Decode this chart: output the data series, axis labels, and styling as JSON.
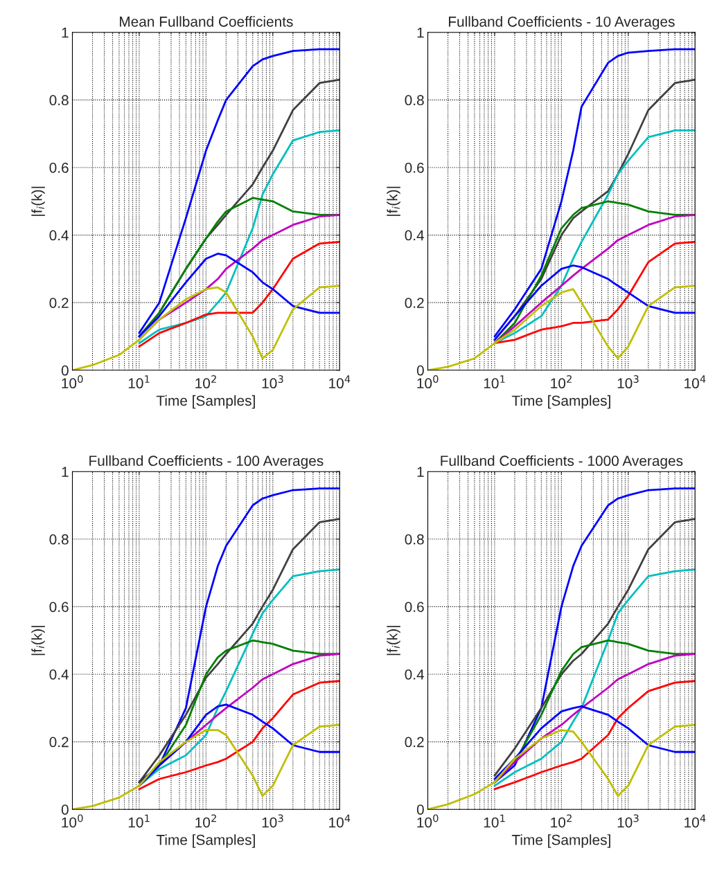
{
  "chart_data": [
    {
      "type": "line",
      "title": "Mean Fullband Coefficients",
      "xlabel": "Time [Samples]",
      "ylabel": "|f$_{i}$(k)|",
      "log": "x",
      "grid": true,
      "xlim": [
        1,
        10000
      ],
      "xticks": [
        {
          "value": 1,
          "label": "10$^{0}$"
        },
        {
          "value": 10,
          "label": "10$^{1}$"
        },
        {
          "value": 100,
          "label": "10$^{2}$"
        },
        {
          "value": 1000,
          "label": "10$^{3}$"
        },
        {
          "value": 10000,
          "label": "10$^{4}$"
        }
      ],
      "ylim": [
        0,
        1
      ],
      "yticks": [
        0,
        0.2,
        0.4,
        0.6,
        0.8,
        1
      ],
      "x": [
        1,
        2,
        5,
        10,
        20,
        50,
        100,
        150,
        200,
        500,
        700,
        1000,
        2000,
        5000,
        10000
      ],
      "series": [
        {
          "color": "#0000ff",
          "values": [
            null,
            null,
            null,
            0.11,
            0.2,
            0.45,
            0.65,
            0.74,
            0.8,
            0.9,
            0.92,
            0.93,
            0.945,
            0.95,
            0.95
          ]
        },
        {
          "color": "#404040",
          "values": [
            null,
            null,
            null,
            0.1,
            0.17,
            0.3,
            0.39,
            0.43,
            0.46,
            0.55,
            0.6,
            0.65,
            0.77,
            0.85,
            0.86
          ]
        },
        {
          "color": "#00bfbf",
          "values": [
            null,
            null,
            null,
            0.08,
            0.12,
            0.14,
            0.16,
            0.2,
            0.23,
            0.42,
            0.52,
            0.58,
            0.68,
            0.705,
            0.71
          ]
        },
        {
          "color": "#008000",
          "values": [
            null,
            null,
            null,
            0.1,
            0.17,
            0.3,
            0.39,
            0.44,
            0.47,
            0.51,
            0.505,
            0.5,
            0.47,
            0.46,
            0.46
          ]
        },
        {
          "color": "#bf00bf",
          "values": [
            null,
            null,
            null,
            0.09,
            0.15,
            0.2,
            0.24,
            0.27,
            0.3,
            0.36,
            0.385,
            0.4,
            0.43,
            0.455,
            0.46
          ]
        },
        {
          "color": "#ff0000",
          "values": [
            null,
            null,
            null,
            0.07,
            0.11,
            0.14,
            0.165,
            0.17,
            0.17,
            0.17,
            0.2,
            0.24,
            0.33,
            0.375,
            0.38
          ]
        },
        {
          "color": "#0000ff",
          "values": [
            null,
            null,
            null,
            0.1,
            0.16,
            0.26,
            0.33,
            0.345,
            0.34,
            0.29,
            0.26,
            0.24,
            0.19,
            0.17,
            0.17
          ]
        },
        {
          "color": "#bfbf00",
          "values": [
            0,
            0.015,
            0.045,
            0.09,
            0.15,
            0.21,
            0.24,
            0.245,
            0.23,
            0.1,
            0.035,
            0.06,
            0.18,
            0.245,
            0.25
          ]
        }
      ]
    },
    {
      "type": "line",
      "title": "Fullband Coefficients - 10 Averages",
      "xlabel": "Time [Samples]",
      "ylabel": "|f$_{i}$(k)|",
      "log": "x",
      "grid": true,
      "xlim": [
        1,
        10000
      ],
      "xticks": [
        {
          "value": 1,
          "label": "10$^{0}$"
        },
        {
          "value": 10,
          "label": "10$^{1}$"
        },
        {
          "value": 100,
          "label": "10$^{2}$"
        },
        {
          "value": 1000,
          "label": "10$^{3}$"
        },
        {
          "value": 10000,
          "label": "10$^{4}$"
        }
      ],
      "ylim": [
        0,
        1
      ],
      "yticks": [
        0,
        0.2,
        0.4,
        0.6,
        0.8,
        1
      ],
      "x": [
        1,
        2,
        5,
        10,
        20,
        50,
        100,
        150,
        200,
        500,
        700,
        1000,
        2000,
        5000,
        10000
      ],
      "series": [
        {
          "color": "#0000ff",
          "values": [
            null,
            null,
            null,
            0.1,
            0.18,
            0.3,
            0.5,
            0.65,
            0.78,
            0.91,
            0.93,
            0.94,
            0.945,
            0.95,
            0.95
          ]
        },
        {
          "color": "#404040",
          "values": [
            null,
            null,
            null,
            0.09,
            0.16,
            0.27,
            0.4,
            0.45,
            0.47,
            0.53,
            0.58,
            0.64,
            0.77,
            0.85,
            0.86
          ]
        },
        {
          "color": "#00bfbf",
          "values": [
            null,
            null,
            null,
            0.08,
            0.11,
            0.16,
            0.25,
            0.33,
            0.38,
            0.52,
            0.58,
            0.62,
            0.69,
            0.71,
            0.71
          ]
        },
        {
          "color": "#008000",
          "values": [
            null,
            null,
            null,
            0.08,
            0.14,
            0.28,
            0.42,
            0.46,
            0.48,
            0.5,
            0.495,
            0.49,
            0.47,
            0.46,
            0.46
          ]
        },
        {
          "color": "#bf00bf",
          "values": [
            null,
            null,
            null,
            0.08,
            0.13,
            0.2,
            0.25,
            0.28,
            0.3,
            0.36,
            0.385,
            0.4,
            0.43,
            0.455,
            0.46
          ]
        },
        {
          "color": "#ff0000",
          "values": [
            null,
            null,
            null,
            0.08,
            0.09,
            0.12,
            0.13,
            0.14,
            0.14,
            0.15,
            0.18,
            0.22,
            0.32,
            0.375,
            0.38
          ]
        },
        {
          "color": "#0000ff",
          "values": [
            null,
            null,
            null,
            0.09,
            0.16,
            0.25,
            0.3,
            0.31,
            0.305,
            0.27,
            0.25,
            0.23,
            0.19,
            0.17,
            0.17
          ]
        },
        {
          "color": "#bfbf00",
          "values": [
            0,
            0.01,
            0.035,
            0.08,
            0.12,
            0.19,
            0.23,
            0.24,
            0.2,
            0.07,
            0.035,
            0.07,
            0.19,
            0.245,
            0.25
          ]
        }
      ]
    },
    {
      "type": "line",
      "title": "Fullband Coefficients - 100 Averages",
      "xlabel": "Time [Samples]",
      "ylabel": "|f$_{i}$(k)|",
      "log": "x",
      "grid": true,
      "xlim": [
        1,
        10000
      ],
      "xticks": [
        {
          "value": 1,
          "label": "10$^{0}$"
        },
        {
          "value": 10,
          "label": "10$^{1}$"
        },
        {
          "value": 100,
          "label": "10$^{2}$"
        },
        {
          "value": 1000,
          "label": "10$^{3}$"
        },
        {
          "value": 10000,
          "label": "10$^{4}$"
        }
      ],
      "ylim": [
        0,
        1
      ],
      "yticks": [
        0,
        0.2,
        0.4,
        0.6,
        0.8,
        1
      ],
      "x": [
        1,
        2,
        5,
        10,
        20,
        50,
        100,
        150,
        200,
        500,
        700,
        1000,
        2000,
        5000,
        10000
      ],
      "series": [
        {
          "color": "#0000ff",
          "values": [
            null,
            null,
            null,
            0.08,
            0.13,
            0.3,
            0.6,
            0.72,
            0.78,
            0.9,
            0.92,
            0.93,
            0.945,
            0.95,
            0.95
          ]
        },
        {
          "color": "#404040",
          "values": [
            null,
            null,
            null,
            0.08,
            0.16,
            0.28,
            0.39,
            0.43,
            0.46,
            0.55,
            0.6,
            0.65,
            0.77,
            0.85,
            0.86
          ]
        },
        {
          "color": "#00bfbf",
          "values": [
            null,
            null,
            null,
            0.07,
            0.12,
            0.16,
            0.22,
            0.3,
            0.35,
            0.52,
            0.58,
            0.62,
            0.69,
            0.705,
            0.71
          ]
        },
        {
          "color": "#008000",
          "values": [
            null,
            null,
            null,
            0.07,
            0.13,
            0.25,
            0.4,
            0.45,
            0.47,
            0.5,
            0.495,
            0.49,
            0.47,
            0.46,
            0.46
          ]
        },
        {
          "color": "#bf00bf",
          "values": [
            null,
            null,
            null,
            0.07,
            0.13,
            0.2,
            0.25,
            0.28,
            0.3,
            0.36,
            0.385,
            0.4,
            0.43,
            0.455,
            0.46
          ]
        },
        {
          "color": "#ff0000",
          "values": [
            null,
            null,
            null,
            0.06,
            0.09,
            0.11,
            0.13,
            0.14,
            0.15,
            0.2,
            0.24,
            0.27,
            0.34,
            0.375,
            0.38
          ]
        },
        {
          "color": "#0000ff",
          "values": [
            null,
            null,
            null,
            0.07,
            0.13,
            0.2,
            0.28,
            0.305,
            0.31,
            0.28,
            0.26,
            0.24,
            0.19,
            0.17,
            0.17
          ]
        },
        {
          "color": "#bfbf00",
          "values": [
            0,
            0.01,
            0.035,
            0.07,
            0.14,
            0.2,
            0.235,
            0.235,
            0.22,
            0.1,
            0.04,
            0.07,
            0.19,
            0.245,
            0.25
          ]
        }
      ]
    },
    {
      "type": "line",
      "title": "Fullband Coefficients - 1000 Averages",
      "xlabel": "Time [Samples]",
      "ylabel": "|f$_{i}$(k)|",
      "log": "x",
      "grid": true,
      "xlim": [
        1,
        10000
      ],
      "xticks": [
        {
          "value": 1,
          "label": "10$^{0}$"
        },
        {
          "value": 10,
          "label": "10$^{1}$"
        },
        {
          "value": 100,
          "label": "10$^{2}$"
        },
        {
          "value": 1000,
          "label": "10$^{3}$"
        },
        {
          "value": 10000,
          "label": "10$^{4}$"
        }
      ],
      "ylim": [
        0,
        1
      ],
      "yticks": [
        0,
        0.2,
        0.4,
        0.6,
        0.8,
        1
      ],
      "x": [
        1,
        2,
        5,
        10,
        20,
        50,
        100,
        150,
        200,
        500,
        700,
        1000,
        2000,
        5000,
        10000
      ],
      "series": [
        {
          "color": "#0000ff",
          "values": [
            null,
            null,
            null,
            0.08,
            0.13,
            0.3,
            0.6,
            0.72,
            0.78,
            0.9,
            0.92,
            0.93,
            0.945,
            0.95,
            0.95
          ]
        },
        {
          "color": "#404040",
          "values": [
            null,
            null,
            null,
            0.1,
            0.18,
            0.3,
            0.4,
            0.44,
            0.46,
            0.55,
            0.6,
            0.65,
            0.77,
            0.85,
            0.86
          ]
        },
        {
          "color": "#00bfbf",
          "values": [
            null,
            null,
            null,
            0.07,
            0.11,
            0.15,
            0.2,
            0.26,
            0.3,
            0.5,
            0.58,
            0.62,
            0.69,
            0.705,
            0.71
          ]
        },
        {
          "color": "#008000",
          "values": [
            null,
            null,
            null,
            0.08,
            0.14,
            0.28,
            0.41,
            0.46,
            0.48,
            0.5,
            0.495,
            0.49,
            0.47,
            0.46,
            0.46
          ]
        },
        {
          "color": "#bf00bf",
          "values": [
            null,
            null,
            null,
            0.08,
            0.14,
            0.21,
            0.25,
            0.28,
            0.3,
            0.36,
            0.385,
            0.4,
            0.43,
            0.455,
            0.46
          ]
        },
        {
          "color": "#ff0000",
          "values": [
            null,
            null,
            null,
            0.06,
            0.08,
            0.11,
            0.13,
            0.14,
            0.15,
            0.22,
            0.27,
            0.3,
            0.35,
            0.375,
            0.38
          ]
        },
        {
          "color": "#0000ff",
          "values": [
            null,
            null,
            null,
            0.09,
            0.15,
            0.24,
            0.29,
            0.3,
            0.305,
            0.28,
            0.26,
            0.24,
            0.19,
            0.17,
            0.17
          ]
        },
        {
          "color": "#bfbf00",
          "values": [
            0,
            0.015,
            0.045,
            0.08,
            0.15,
            0.21,
            0.235,
            0.23,
            0.2,
            0.09,
            0.04,
            0.07,
            0.19,
            0.245,
            0.25
          ]
        }
      ]
    }
  ]
}
